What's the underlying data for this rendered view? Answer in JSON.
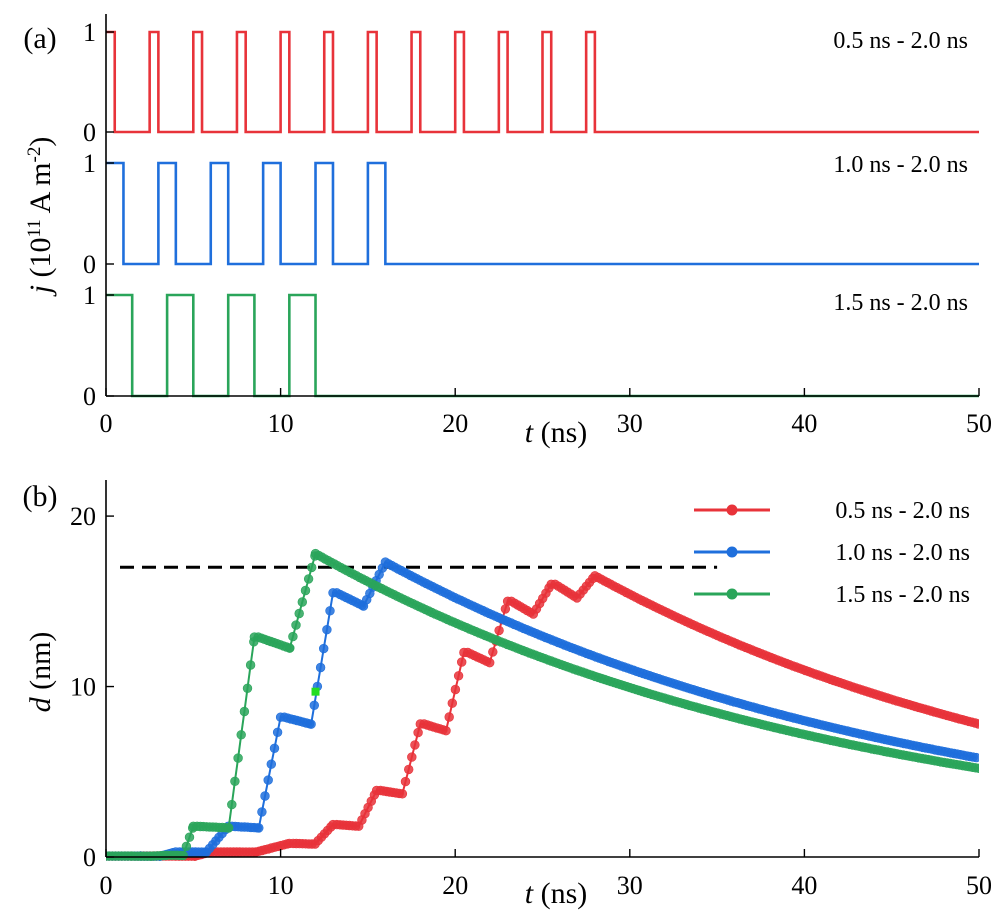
{
  "chart_data": [
    {
      "panel": "(a)",
      "type": "line",
      "xlabel_italic": "t",
      "xlabel_rest": " (ns)",
      "ylabel_italic": "j",
      "ylabel_rest": " (10",
      "ylabel_exp1": "11",
      "ylabel_mid": " A m",
      "ylabel_exp2": "-2",
      "ylabel_close": ")",
      "xlim": [
        0,
        50
      ],
      "xticks": [
        0,
        10,
        20,
        30,
        40,
        50
      ],
      "xtick_labels": [
        "0",
        "10",
        "20",
        "30",
        "40",
        "50"
      ],
      "ylim": [
        0,
        1
      ],
      "yticks": [
        0,
        1
      ],
      "ytick_labels": [
        "0",
        "1"
      ],
      "subplots": [
        {
          "name": "0.5 ns - 2.0 ns",
          "color": "#e8333a",
          "on_ns": 0.5,
          "period_ns": 2.5,
          "pulses": 12,
          "edges": [
            [
              0.0,
              0.5
            ],
            [
              2.5,
              3.0
            ],
            [
              5.0,
              5.5
            ],
            [
              7.5,
              8.0
            ],
            [
              10.0,
              10.5
            ],
            [
              12.5,
              13.0
            ],
            [
              15.0,
              15.5
            ],
            [
              17.5,
              18.0
            ],
            [
              20.0,
              20.5
            ],
            [
              22.5,
              23.0
            ],
            [
              25.0,
              25.5
            ],
            [
              27.5,
              28.0
            ]
          ]
        },
        {
          "name": "1.0 ns - 2.0 ns",
          "color": "#1f6fdc",
          "on_ns": 1.0,
          "period_ns": 3.0,
          "pulses": 6,
          "edges": [
            [
              0.0,
              1.0
            ],
            [
              3.0,
              4.0
            ],
            [
              6.0,
              7.0
            ],
            [
              9.0,
              10.0
            ],
            [
              12.0,
              13.0
            ],
            [
              15.0,
              16.0
            ]
          ]
        },
        {
          "name": "1.5 ns - 2.0 ns",
          "color": "#2aa55a",
          "on_ns": 1.5,
          "period_ns": 3.5,
          "pulses": 4,
          "edges": [
            [
              0.0,
              1.5
            ],
            [
              3.5,
              5.0
            ],
            [
              7.0,
              8.5
            ],
            [
              10.5,
              12.0
            ]
          ]
        }
      ]
    },
    {
      "panel": "(b)",
      "type": "line",
      "xlabel_italic": "t",
      "xlabel_rest": " (ns)",
      "ylabel_italic": "d",
      "ylabel_rest": " (nm)",
      "xlim": [
        0,
        50
      ],
      "xticks": [
        0,
        10,
        20,
        30,
        40,
        50
      ],
      "xtick_labels": [
        "0",
        "10",
        "20",
        "30",
        "40",
        "50"
      ],
      "ylim": [
        0,
        22
      ],
      "yticks": [
        0,
        10,
        20
      ],
      "ytick_labels": [
        "0",
        "10",
        "20"
      ],
      "threshold": {
        "y": 17.0,
        "x_range": [
          0,
          35
        ],
        "style": "dashed",
        "color": "#000000"
      },
      "highlight_marker": {
        "x": 12.0,
        "y": 9.7,
        "color": "#22dd22"
      },
      "legend_position": "top-right",
      "series": [
        {
          "name": "0.5 ns - 2.0 ns",
          "color": "#e8333a",
          "peaks": [
            [
              6.0,
              0.3
            ],
            [
              10.5,
              0.8
            ],
            [
              13.0,
              1.9
            ],
            [
              15.5,
              3.9
            ],
            [
              18.0,
              7.8
            ],
            [
              20.5,
              12.0
            ],
            [
              23.0,
              15.0
            ],
            [
              25.5,
              16.0
            ],
            [
              28.0,
              16.5
            ]
          ],
          "decay_end": [
            50,
            7.8
          ]
        },
        {
          "name": "1.0 ns - 2.0 ns",
          "color": "#1f6fdc",
          "peaks": [
            [
              4.0,
              0.3
            ],
            [
              7.0,
              1.8
            ],
            [
              10.0,
              8.2
            ],
            [
              13.0,
              15.5
            ],
            [
              16.0,
              17.3
            ]
          ],
          "decay_end": [
            50,
            5.8
          ]
        },
        {
          "name": "1.5 ns - 2.0 ns",
          "color": "#2aa55a",
          "peaks": [
            [
              3.5,
              0.1
            ],
            [
              5.0,
              1.8
            ],
            [
              8.5,
              12.9
            ],
            [
              12.0,
              17.8
            ]
          ],
          "decay_end": [
            50,
            5.2
          ]
        }
      ]
    }
  ]
}
